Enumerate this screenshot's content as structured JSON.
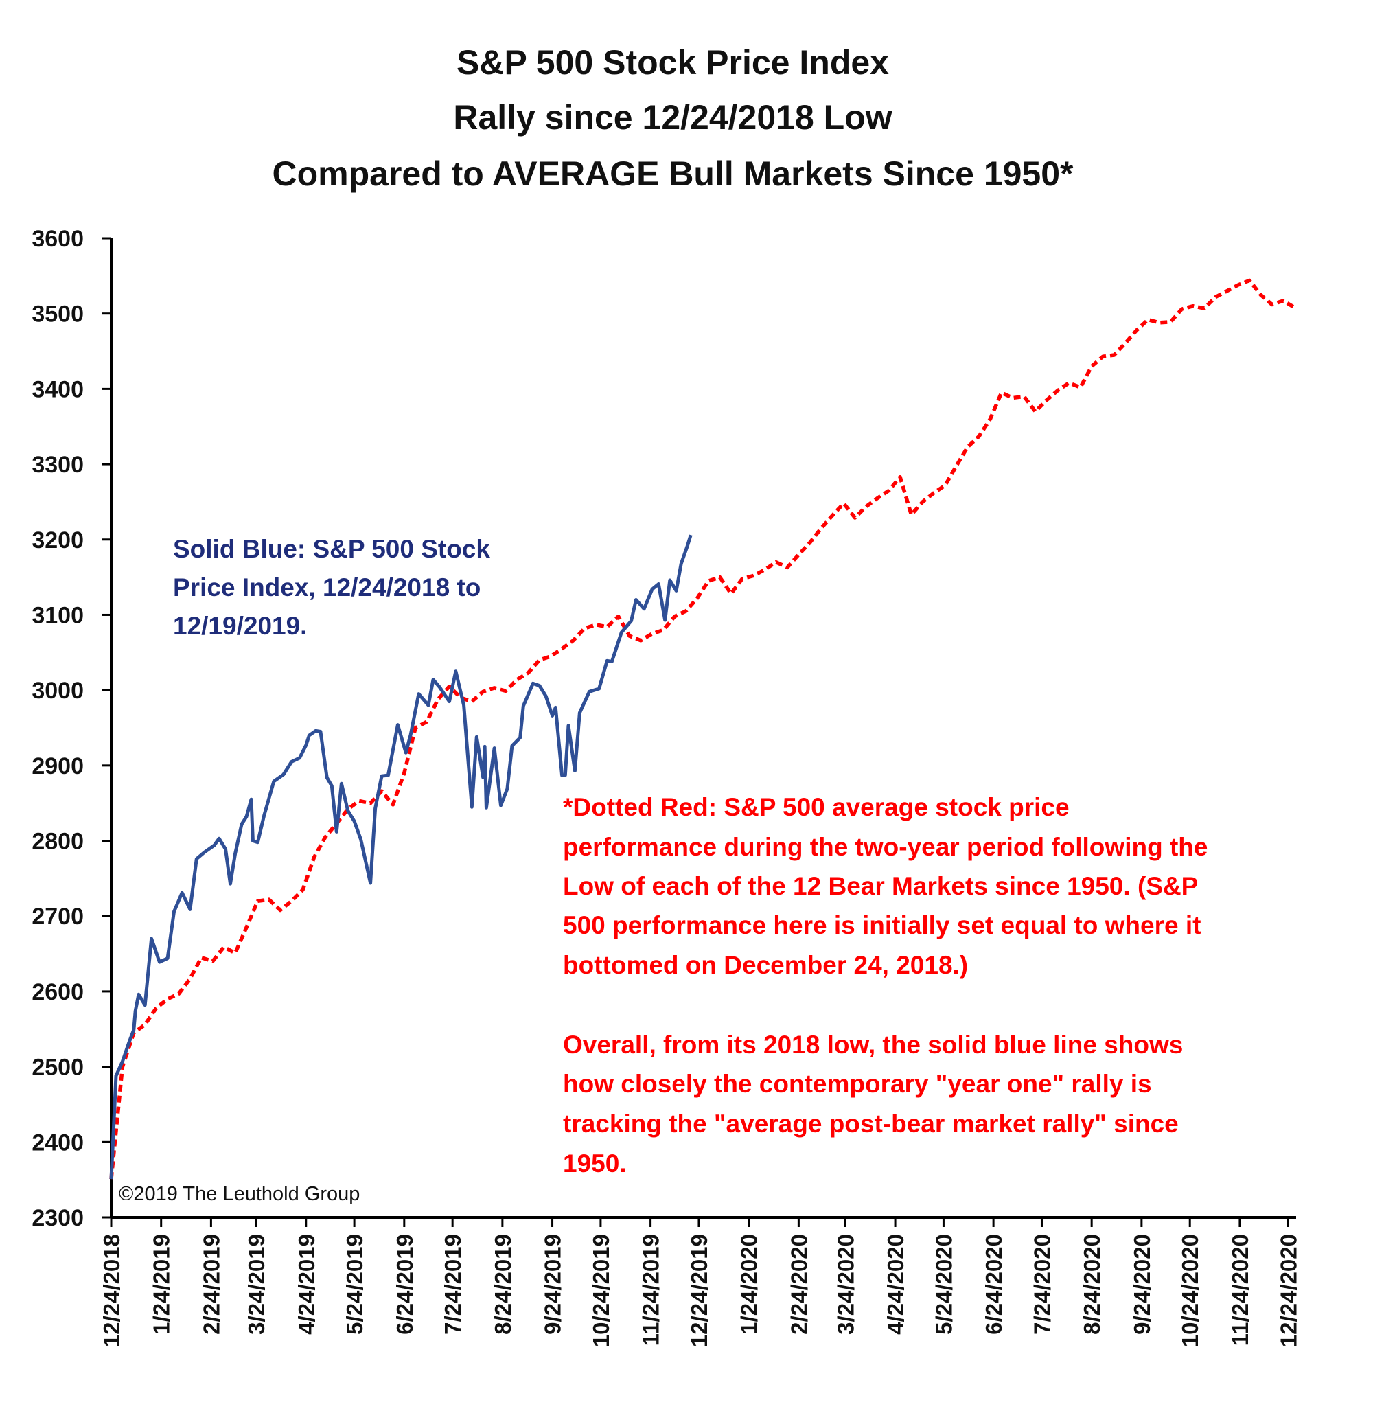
{
  "chart_data": {
    "type": "line",
    "title": [
      "S&P 500 Stock Price Index",
      "Rally since 12/24/2018 Low",
      "Compared to AVERAGE Bull Markets Since 1950*"
    ],
    "xlabel": "",
    "ylabel": "",
    "ylim": [
      2300,
      3600
    ],
    "yticks": [
      2300,
      2400,
      2500,
      2600,
      2700,
      2800,
      2900,
      3000,
      3100,
      3200,
      3300,
      3400,
      3500,
      3600
    ],
    "xlim": [
      "12/24/2018",
      "12/29/2020"
    ],
    "xtick_labels": [
      "12/24/2018",
      "1/24/2019",
      "2/24/2019",
      "3/24/2019",
      "4/24/2019",
      "5/24/2019",
      "6/24/2019",
      "7/24/2019",
      "8/24/2019",
      "9/24/2019",
      "10/24/2019",
      "11/24/2019",
      "12/24/2019",
      "1/24/2020",
      "2/24/2020",
      "3/24/2020",
      "4/24/2020",
      "5/24/2020",
      "6/24/2020",
      "7/24/2020",
      "8/24/2020",
      "9/24/2020",
      "10/24/2020",
      "11/24/2020",
      "12/24/2020"
    ],
    "grid": false,
    "legend": "none",
    "series": [
      {
        "name": "Solid Blue: S&P 500 Stock Price Index, 12/24/2018 to 12/19/2019",
        "style": "solid",
        "color": "#2f4f96",
        "x": [
          "12/24/2018",
          "12/27/2018",
          "12/31/2018",
          "1/4/2019",
          "1/7/2019",
          "1/8/2019",
          "1/10/2019",
          "1/14/2019",
          "1/18/2019",
          "1/23/2019",
          "1/28/2019",
          "2/1/2019",
          "2/6/2019",
          "2/11/2019",
          "2/15/2019",
          "2/20/2019",
          "2/26/2019",
          "3/1/2019",
          "3/5/2019",
          "3/8/2019",
          "3/11/2019",
          "3/15/2019",
          "3/18/2019",
          "3/21/2019",
          "3/22/2019",
          "3/25/2019",
          "3/29/2019",
          "4/4/2019",
          "4/10/2019",
          "4/15/2019",
          "4/20/2019",
          "4/24/2019",
          "4/26/2019",
          "4/30/2019",
          "5/3/2019",
          "5/7/2019",
          "5/10/2019",
          "5/13/2019",
          "5/16/2019",
          "5/20/2019",
          "5/24/2019",
          "5/28/2019",
          "6/3/2019",
          "6/6/2019",
          "6/10/2019",
          "6/14/2019",
          "6/20/2019",
          "6/25/2019",
          "6/28/2019",
          "7/3/2019",
          "7/9/2019",
          "7/12/2019",
          "7/16/2019",
          "7/22/2019",
          "7/26/2019",
          "7/31/2019",
          "8/5/2019",
          "8/8/2019",
          "8/12/2019",
          "8/13/2019",
          "8/14/2019",
          "8/19/2019",
          "8/23/2019",
          "8/27/2019",
          "8/30/2019",
          "9/4/2019",
          "9/6/2019",
          "9/12/2019",
          "9/16/2019",
          "9/20/2019",
          "9/24/2019",
          "9/26/2019",
          "9/30/2019",
          "10/2/2019",
          "10/4/2019",
          "10/8/2019",
          "10/11/2019",
          "10/17/2019",
          "10/23/2019",
          "10/28/2019",
          "10/31/2019",
          "11/6/2019",
          "11/12/2019",
          "11/15/2019",
          "11/20/2019",
          "11/25/2019",
          "11/29/2019",
          "12/3/2019",
          "12/6/2019",
          "12/10/2019",
          "12/13/2019",
          "12/17/2019",
          "12/19/2019"
        ],
        "values": [
          2351,
          2488,
          2507,
          2532,
          2549,
          2574,
          2596,
          2582,
          2670,
          2639,
          2644,
          2706,
          2731,
          2709,
          2776,
          2785,
          2794,
          2803,
          2789,
          2743,
          2783,
          2822,
          2832,
          2855,
          2800,
          2798,
          2834,
          2879,
          2888,
          2905,
          2910,
          2927,
          2940,
          2946,
          2945,
          2884,
          2873,
          2812,
          2876,
          2840,
          2826,
          2802,
          2744,
          2843,
          2886,
          2887,
          2954,
          2917,
          2941,
          2995,
          2980,
          3014,
          3004,
          2985,
          3025,
          2980,
          2845,
          2938,
          2884,
          2925,
          2844,
          2923,
          2847,
          2869,
          2926,
          2937,
          2979,
          3009,
          3006,
          2992,
          2966,
          2977,
          2887,
          2887,
          2953,
          2893,
          2970,
          2998,
          3002,
          3039,
          3038,
          3077,
          3092,
          3120,
          3108,
          3134,
          3141,
          3093,
          3146,
          3132,
          3168,
          3192,
          3206
        ]
      },
      {
        "name": "*Dotted Red: S&P 500 average stock price performance during the two-year period following the Low of each of the 12 Bear Markets since 1950.",
        "style": "dashed",
        "color": "#ff0000",
        "x": [
          "12/24/2018",
          "12/31/2018",
          "1/7/2019",
          "1/14/2019",
          "1/21/2019",
          "1/28/2019",
          "2/4/2019",
          "2/11/2019",
          "2/18/2019",
          "2/25/2019",
          "3/4/2019",
          "3/11/2019",
          "3/18/2019",
          "3/25/2019",
          "4/1/2019",
          "4/8/2019",
          "4/15/2019",
          "4/22/2019",
          "4/29/2019",
          "5/6/2019",
          "5/13/2019",
          "5/20/2019",
          "5/27/2019",
          "6/3/2019",
          "6/10/2019",
          "6/17/2019",
          "6/24/2019",
          "7/1/2019",
          "7/8/2019",
          "7/15/2019",
          "7/22/2019",
          "7/29/2019",
          "8/5/2019",
          "8/12/2019",
          "8/19/2019",
          "8/26/2019",
          "9/2/2019",
          "9/9/2019",
          "9/16/2019",
          "9/23/2019",
          "9/30/2019",
          "10/7/2019",
          "10/14/2019",
          "10/21/2019",
          "10/28/2019",
          "11/4/2019",
          "11/11/2019",
          "11/18/2019",
          "11/25/2019",
          "12/2/2019",
          "12/9/2019",
          "12/16/2019",
          "12/23/2019",
          "12/30/2019",
          "1/6/2020",
          "1/13/2020",
          "1/20/2020",
          "1/27/2020",
          "2/3/2020",
          "2/10/2020",
          "2/17/2020",
          "2/24/2020",
          "3/2/2020",
          "3/9/2020",
          "3/16/2020",
          "3/23/2020",
          "3/30/2020",
          "4/6/2020",
          "4/13/2020",
          "4/20/2020",
          "4/27/2020",
          "5/4/2020",
          "5/11/2020",
          "5/18/2020",
          "5/25/2020",
          "6/1/2020",
          "6/8/2020",
          "6/15/2020",
          "6/22/2020",
          "6/29/2020",
          "7/6/2020",
          "7/13/2020",
          "7/20/2020",
          "7/27/2020",
          "8/3/2020",
          "8/10/2020",
          "8/17/2020",
          "8/24/2020",
          "8/31/2020",
          "9/7/2020",
          "9/14/2020",
          "9/21/2020",
          "9/28/2020",
          "10/5/2020",
          "10/12/2020",
          "10/19/2020",
          "10/26/2020",
          "11/2/2020",
          "11/9/2020",
          "11/16/2020",
          "11/23/2020",
          "11/30/2020",
          "12/7/2020",
          "12/14/2020",
          "12/21/2020",
          "12/28/2020"
        ],
        "values": [
          2351,
          2500,
          2545,
          2556,
          2578,
          2590,
          2597,
          2617,
          2645,
          2640,
          2659,
          2651,
          2685,
          2720,
          2722,
          2708,
          2720,
          2735,
          2778,
          2805,
          2823,
          2842,
          2853,
          2850,
          2866,
          2848,
          2890,
          2950,
          2958,
          2988,
          3005,
          2990,
          2985,
          2998,
          3003,
          2999,
          3014,
          3023,
          3040,
          3045,
          3055,
          3066,
          3082,
          3087,
          3084,
          3098,
          3072,
          3066,
          3075,
          3080,
          3098,
          3105,
          3122,
          3145,
          3150,
          3128,
          3148,
          3152,
          3160,
          3170,
          3163,
          3180,
          3196,
          3215,
          3232,
          3248,
          3229,
          3244,
          3255,
          3265,
          3283,
          3233,
          3250,
          3262,
          3272,
          3298,
          3323,
          3337,
          3360,
          3395,
          3388,
          3390,
          3370,
          3385,
          3398,
          3408,
          3402,
          3430,
          3443,
          3445,
          3461,
          3478,
          3492,
          3488,
          3489,
          3506,
          3510,
          3507,
          3522,
          3530,
          3538,
          3544,
          3525,
          3512,
          3517,
          3508
        ]
      }
    ],
    "annotations": {
      "blue_note": [
        "Solid Blue: S&P 500 Stock",
        "Price Index, 12/24/2018 to",
        "12/19/2019."
      ],
      "red_note_1": [
        "*Dotted Red: S&P 500 average stock price",
        "performance during the two-year period following the",
        "Low of each of the 12 Bear Markets since 1950. (S&P",
        "500 performance here is initially set equal to where it",
        "bottomed on December 24, 2018.)"
      ],
      "red_note_2": [
        "Overall, from its 2018 low, the solid blue line shows",
        "how closely the contemporary \"year one\" rally is",
        "tracking the \"average post-bear market rally\" since",
        "1950."
      ],
      "copyright": "©2019 The Leuthold Group"
    }
  }
}
